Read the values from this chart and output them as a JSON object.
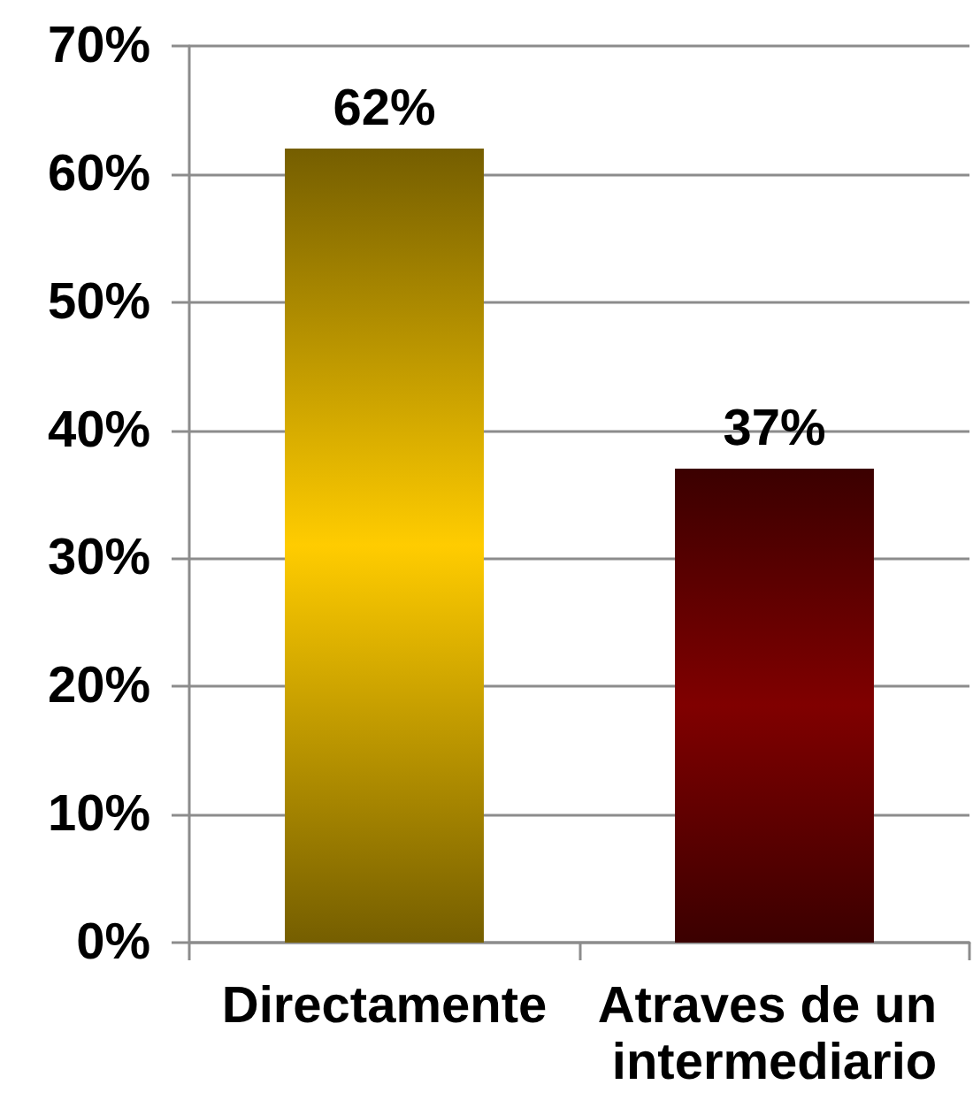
{
  "chart_data": {
    "type": "bar",
    "categories": [
      "Directamente",
      "Atraves de un intermediario"
    ],
    "values": [
      62,
      37
    ],
    "colors": [
      "#ffcc00",
      "#800000"
    ],
    "value_labels": [
      "62%",
      "37%"
    ],
    "ylim": [
      0,
      70
    ],
    "yticks": [
      {
        "value": 0,
        "label": "0%"
      },
      {
        "value": 10,
        "label": "10%"
      },
      {
        "value": 20,
        "label": "20%"
      },
      {
        "value": 30,
        "label": "30%"
      },
      {
        "value": 40,
        "label": "40%"
      },
      {
        "value": 50,
        "label": "50%"
      },
      {
        "value": 60,
        "label": "60%"
      },
      {
        "value": 70,
        "label": "70%"
      }
    ],
    "grid": "y"
  }
}
